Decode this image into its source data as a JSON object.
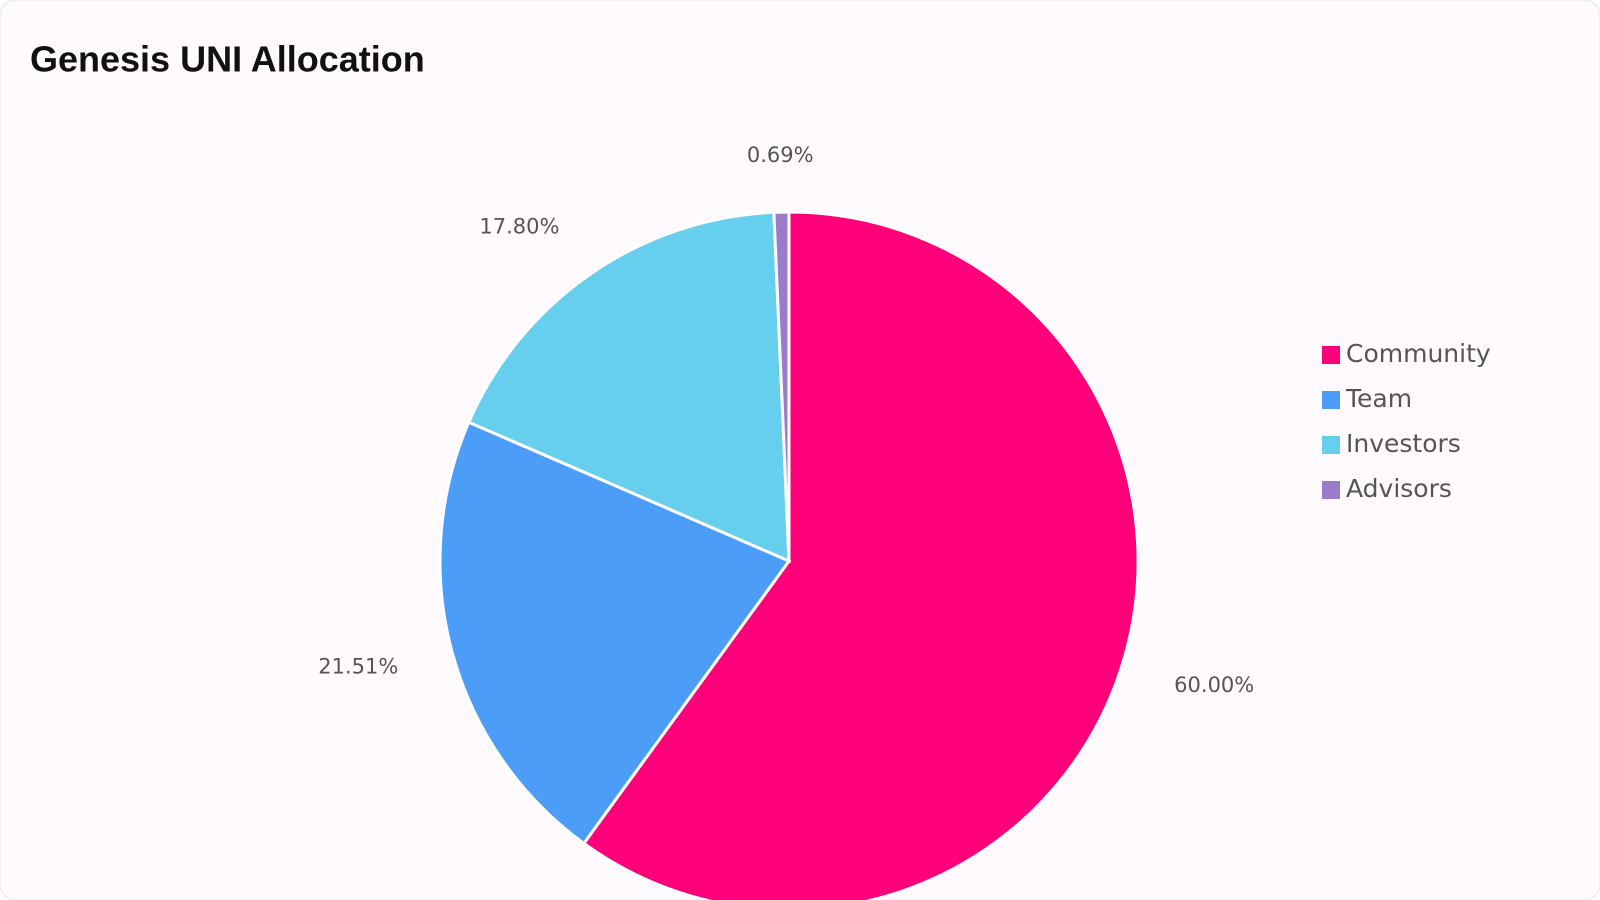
{
  "chart_data": {
    "type": "pie",
    "title": "Genesis UNI Allocation",
    "categories": [
      "Community",
      "Team",
      "Investors",
      "Advisors"
    ],
    "values": [
      60,
      21.51,
      17.8,
      0.69
    ],
    "value_labels": [
      "60.00%",
      "21.51%",
      "17.80%",
      "0.69%"
    ],
    "colors": [
      "#ff007a",
      "#4c9df8",
      "#66cfee",
      "#9b7ccb"
    ],
    "legend": "right"
  }
}
